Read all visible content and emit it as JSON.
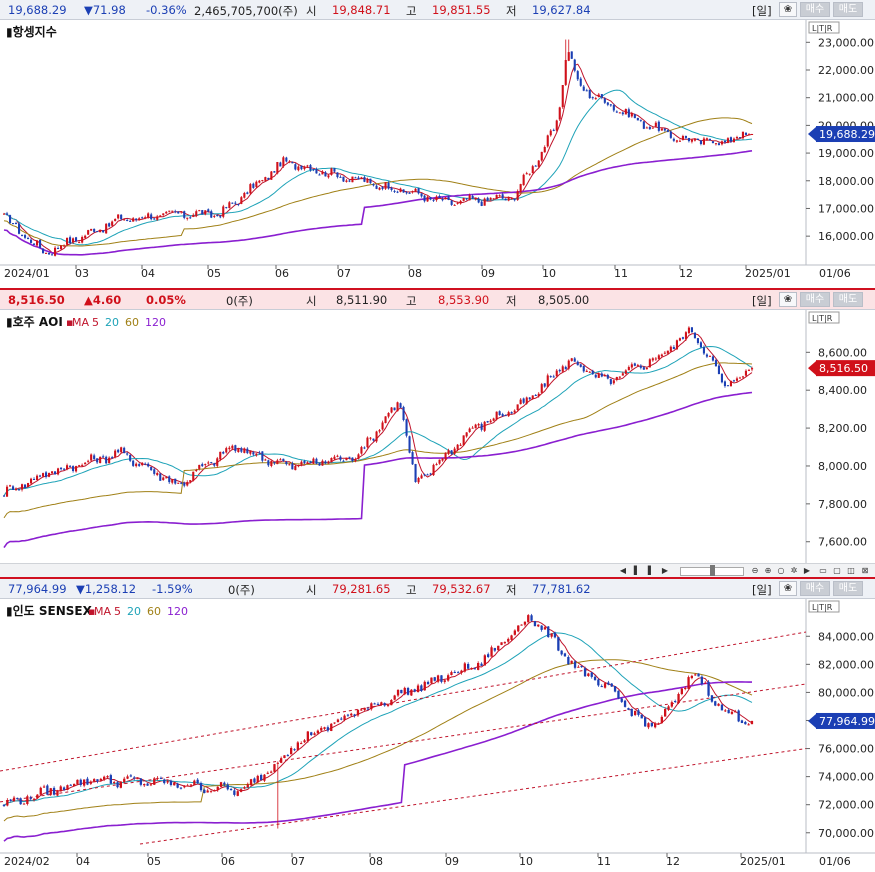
{
  "panels": [
    {
      "id": "hangseng",
      "header": {
        "price": "19,688.29",
        "change": "▼71.98",
        "pct": "-0.36%",
        "volume": "2,465,705,700(주)",
        "open_label": "시",
        "open": "19,848.71",
        "high_label": "고",
        "high": "19,851.55",
        "low_label": "저",
        "low": "19,627.84"
      },
      "title": "항셍지수",
      "current_price_label": "19,688.29",
      "y_ticks": [
        "23,000.00",
        "22,000.00",
        "21,000.00",
        "20,000.00",
        "19,000.00",
        "18,000.00",
        "17,000.00",
        "16,000.00"
      ],
      "x_ticks": [
        "2024/01",
        "03",
        "04",
        "05",
        "06",
        "07",
        "08",
        "09",
        "10",
        "11",
        "12",
        "2025/01",
        "01/06"
      ]
    },
    {
      "id": "asx",
      "header": {
        "price": "8,516.50",
        "change": "▲4.60",
        "pct": "0.05%",
        "volume": "0(주)",
        "open_label": "시",
        "open": "8,511.90",
        "high_label": "고",
        "high": "8,553.90",
        "low_label": "저",
        "low": "8,505.00"
      },
      "title": "호주 AOI",
      "ma_labels": [
        "MA",
        "5",
        "20",
        "60",
        "120"
      ],
      "current_price_label": "8,516.50",
      "y_ticks": [
        "8,600.00",
        "8,400.00",
        "8,200.00",
        "8,000.00",
        "7,800.00",
        "7,600.00"
      ],
      "x_ticks": [
        "2024/02",
        "03",
        "04",
        "05",
        "06",
        "07",
        "08",
        "09",
        "10",
        "11",
        "12",
        "2025/01",
        "01/06"
      ]
    },
    {
      "id": "sensex",
      "header": {
        "price": "77,964.99",
        "change": "▼1,258.12",
        "pct": "-1.59%",
        "volume": "0(주)",
        "open_label": "시",
        "open": "79,281.65",
        "high_label": "고",
        "high": "79,532.67",
        "low_label": "저",
        "low": "77,781.62"
      },
      "title": "인도 SENSEX",
      "ma_labels": [
        "MA",
        "5",
        "20",
        "60",
        "120"
      ],
      "current_price_label": "77,964.99",
      "y_ticks": [
        "84,000.00",
        "82,000.00",
        "80,000.00",
        "78,000.00",
        "76,000.00",
        "74,000.00",
        "72,000.00",
        "70,000.00"
      ],
      "x_ticks": [
        "2024/02",
        "04",
        "05",
        "06",
        "07",
        "08",
        "09",
        "10",
        "11",
        "12",
        "2025/01",
        "01/06"
      ]
    }
  ],
  "buttons": {
    "period": "[일]",
    "star": "❀",
    "buy": "매수",
    "sell": "매도",
    "scale": "L|T|R"
  },
  "colors": {
    "up": "#d0101a",
    "down": "#1b3fb4",
    "ma5": "#c0152c",
    "ma20": "#1fa3b8",
    "ma60": "#a08016",
    "ma120": "#8a1fd0",
    "trend": "#c0152c"
  },
  "chart_data": [
    {
      "type": "candlestick",
      "title": "항셍지수",
      "x": [
        "2024/01",
        "03",
        "04",
        "05",
        "06",
        "07",
        "08",
        "09",
        "10",
        "11",
        "12",
        "2025/01"
      ],
      "close_anchors": [
        16700,
        15400,
        16600,
        16800,
        16800,
        18700,
        18100,
        17600,
        17200,
        17400,
        19800,
        21500,
        20200,
        19500,
        19400,
        19700
      ],
      "close_anchor_dates": [
        "2024-01-02",
        "2024-01-22",
        "2024-02-28",
        "2024-03-28",
        "2024-04-18",
        "2024-05-20",
        "2024-06-20",
        "2024-07-20",
        "2024-08-08",
        "2024-09-10",
        "2024-09-30",
        "2024-10-10",
        "2024-11-10",
        "2024-12-01",
        "2024-12-20",
        "2025-01-06"
      ],
      "peak": {
        "date": "2024-10-07",
        "value": 23100
      },
      "last_close": 19688.29,
      "ylim": [
        15500,
        23300
      ],
      "moving_averages": [
        5,
        20,
        60,
        120
      ]
    },
    {
      "type": "candlestick",
      "title": "호주 AOI",
      "x": [
        "2024/02",
        "03",
        "04",
        "05",
        "06",
        "07",
        "08",
        "09",
        "10",
        "11",
        "12",
        "2025/01"
      ],
      "close_anchors": [
        7860,
        7960,
        8070,
        7900,
        8100,
        8000,
        8050,
        8350,
        7900,
        8200,
        8330,
        8560,
        8440,
        8580,
        8720,
        8420,
        8516
      ],
      "close_anchor_dates": [
        "2024-02-01",
        "2024-02-20",
        "2024-03-25",
        "2024-04-20",
        "2024-05-15",
        "2024-06-10",
        "2024-07-10",
        "2024-07-30",
        "2024-08-06",
        "2024-09-01",
        "2024-09-25",
        "2024-10-15",
        "2024-11-01",
        "2024-11-25",
        "2024-12-10",
        "2024-12-25",
        "2025-01-06"
      ],
      "last_close": 8516.5,
      "ylim": [
        7530,
        8760
      ],
      "moving_averages": [
        5,
        20,
        60,
        120
      ]
    },
    {
      "type": "candlestick",
      "title": "인도 SENSEX",
      "x": [
        "2024/02",
        "04",
        "05",
        "06",
        "07",
        "08",
        "09",
        "10",
        "11",
        "12",
        "2025/01"
      ],
      "close_anchors": [
        72000,
        73800,
        73600,
        73000,
        76600,
        78600,
        80000,
        82100,
        85500,
        81500,
        79800,
        77500,
        79000,
        81500,
        78500,
        77965
      ],
      "close_anchor_dates": [
        "2024-02-01",
        "2024-03-10",
        "2024-04-10",
        "2024-05-20",
        "2024-06-15",
        "2024-07-10",
        "2024-08-01",
        "2024-09-05",
        "2024-09-27",
        "2024-10-20",
        "2024-11-05",
        "2024-11-20",
        "2024-12-01",
        "2024-12-10",
        "2024-12-25",
        "2025-01-06"
      ],
      "gap_low": {
        "date": "2024-06-04",
        "value": 70300
      },
      "last_close": 77964.99,
      "ylim": [
        69200,
        85800
      ],
      "moving_averages": [
        5,
        20,
        60,
        120
      ]
    }
  ]
}
